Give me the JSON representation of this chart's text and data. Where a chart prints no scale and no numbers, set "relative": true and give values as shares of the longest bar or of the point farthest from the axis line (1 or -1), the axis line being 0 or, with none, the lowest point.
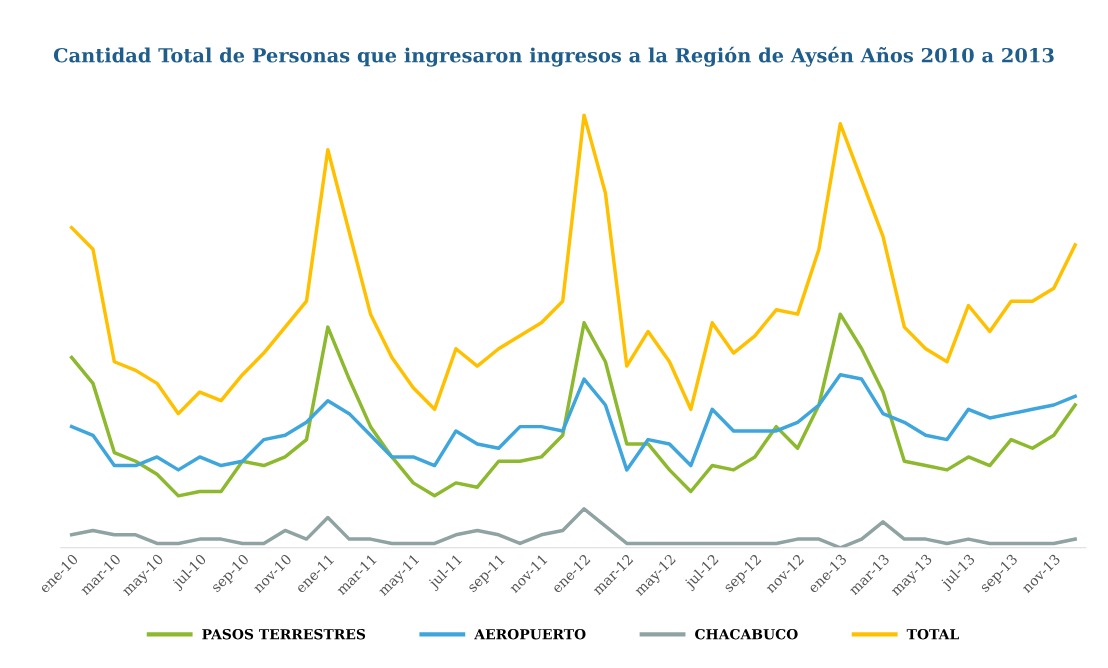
{
  "chart_data": {
    "type": "line",
    "title": "Cantidad Total de Personas que ingresaron ingresos a la Región de Aysén Años 2010 a 2013",
    "relative": true,
    "legend": "bottom",
    "categories": [
      "ene-10",
      null,
      "mar-10",
      null,
      "may-10",
      null,
      "jul-10",
      null,
      "sep-10",
      null,
      "nov-10",
      null,
      "ene-11",
      null,
      "mar-11",
      null,
      "may-11",
      null,
      "jul-11",
      null,
      "sep-11",
      null,
      "nov-11",
      null,
      "ene-12",
      null,
      "mar-12",
      null,
      "may-12",
      null,
      "jul-12",
      null,
      "sep-12",
      null,
      "nov-12",
      null,
      "ene-13",
      null,
      "mar-13",
      null,
      "may-13",
      null,
      "jul-13",
      null,
      "sep-13",
      null,
      "nov-13",
      null
    ],
    "series": [
      {
        "name": "PASOS TERRESTRES",
        "color": "#8db92e",
        "values": [
          0.44,
          0.38,
          0.22,
          0.2,
          0.17,
          0.12,
          0.13,
          0.13,
          0.2,
          0.19,
          0.21,
          0.25,
          0.51,
          0.39,
          0.28,
          0.21,
          0.15,
          0.12,
          0.15,
          0.14,
          0.2,
          0.2,
          0.21,
          0.26,
          0.52,
          0.43,
          0.24,
          0.24,
          0.18,
          0.13,
          0.19,
          0.18,
          0.21,
          0.28,
          0.23,
          0.33,
          0.54,
          0.46,
          0.36,
          0.2,
          0.19,
          0.18,
          0.21,
          0.19,
          0.25,
          0.23,
          0.26,
          0.33
        ]
      },
      {
        "name": "AEROPUERTO",
        "color": "#3ea6dc",
        "values": [
          0.28,
          0.26,
          0.19,
          0.19,
          0.21,
          0.18,
          0.21,
          0.19,
          0.2,
          0.25,
          0.26,
          0.29,
          0.34,
          0.31,
          0.26,
          0.21,
          0.21,
          0.19,
          0.27,
          0.24,
          0.23,
          0.28,
          0.28,
          0.27,
          0.39,
          0.33,
          0.18,
          0.25,
          0.24,
          0.19,
          0.32,
          0.27,
          0.27,
          0.27,
          0.29,
          0.33,
          0.4,
          0.39,
          0.31,
          0.29,
          0.26,
          0.25,
          0.32,
          0.3,
          0.31,
          0.32,
          0.33,
          0.35
        ]
      },
      {
        "name": "CHACABUCO",
        "color": "#8fa3a3",
        "values": [
          0.03,
          0.04,
          0.03,
          0.03,
          0.01,
          0.01,
          0.02,
          0.02,
          0.01,
          0.01,
          0.04,
          0.02,
          0.07,
          0.02,
          0.02,
          0.01,
          0.01,
          0.01,
          0.03,
          0.04,
          0.03,
          0.01,
          0.03,
          0.04,
          0.09,
          0.05,
          0.01,
          0.01,
          0.01,
          0.01,
          0.01,
          0.01,
          0.01,
          0.01,
          0.02,
          0.02,
          0.0,
          0.02,
          0.06,
          0.02,
          0.02,
          0.01,
          0.02,
          0.01,
          0.01,
          0.01,
          0.01,
          0.02
        ]
      },
      {
        "name": "TOTAL",
        "color": "#ffc000",
        "values": [
          0.74,
          0.69,
          0.43,
          0.41,
          0.38,
          0.31,
          0.36,
          0.34,
          0.4,
          0.45,
          0.51,
          0.57,
          0.92,
          0.73,
          0.54,
          0.44,
          0.37,
          0.32,
          0.46,
          0.42,
          0.46,
          0.49,
          0.52,
          0.57,
          1,
          0.82,
          0.42,
          0.5,
          0.43,
          0.32,
          0.52,
          0.45,
          0.49,
          0.55,
          0.54,
          0.69,
          0.98,
          0.85,
          0.72,
          0.51,
          0.46,
          0.43,
          0.56,
          0.5,
          0.57,
          0.57,
          0.6,
          0.7
        ]
      }
    ]
  }
}
